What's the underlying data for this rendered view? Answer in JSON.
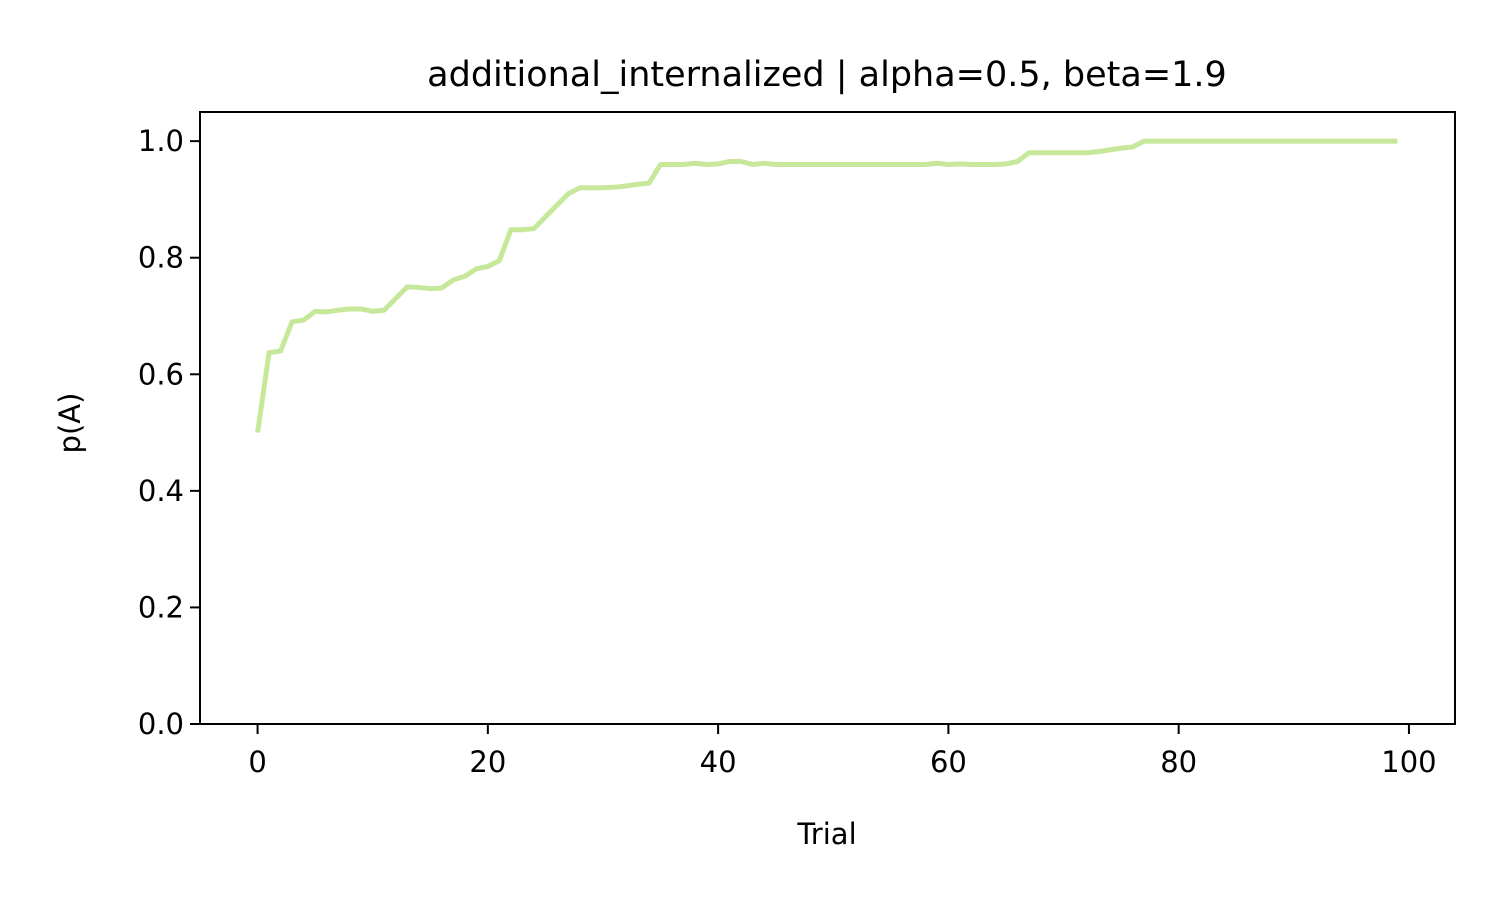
{
  "chart_data": {
    "type": "line",
    "title": "additional_internalized | alpha=0.5, beta=1.9",
    "xlabel": "Trial",
    "ylabel": "p(A)",
    "xlim": [
      -5,
      104
    ],
    "ylim": [
      0.0,
      1.05
    ],
    "x_ticks": [
      0,
      20,
      40,
      60,
      80,
      100
    ],
    "x_tick_labels": [
      "0",
      "20",
      "40",
      "60",
      "80",
      "100"
    ],
    "y_ticks": [
      0.0,
      0.2,
      0.4,
      0.6,
      0.8,
      1.0
    ],
    "y_tick_labels": [
      "0.0",
      "0.2",
      "0.4",
      "0.6",
      "0.8",
      "1.0"
    ],
    "grid": false,
    "series": [
      {
        "color": "#c7e89b",
        "x": [
          0,
          1,
          2,
          3,
          4,
          5,
          6,
          7,
          8,
          9,
          10,
          11,
          12,
          13,
          14,
          15,
          16,
          17,
          18,
          19,
          20,
          21,
          22,
          23,
          24,
          25,
          26,
          27,
          28,
          29,
          30,
          31,
          32,
          33,
          34,
          35,
          36,
          37,
          38,
          39,
          40,
          41,
          42,
          43,
          44,
          45,
          46,
          47,
          48,
          49,
          50,
          51,
          52,
          53,
          54,
          55,
          56,
          57,
          58,
          59,
          60,
          61,
          62,
          63,
          64,
          65,
          66,
          67,
          68,
          69,
          70,
          71,
          72,
          73,
          74,
          75,
          76,
          77,
          78,
          79,
          80,
          81,
          82,
          83,
          84,
          85,
          86,
          87,
          88,
          89,
          90,
          91,
          92,
          93,
          94,
          95,
          96,
          97,
          98,
          99
        ],
        "values": [
          0.5,
          0.637,
          0.64,
          0.69,
          0.693,
          0.708,
          0.707,
          0.71,
          0.712,
          0.712,
          0.708,
          0.71,
          0.73,
          0.75,
          0.749,
          0.747,
          0.748,
          0.762,
          0.768,
          0.781,
          0.785,
          0.795,
          0.848,
          0.848,
          0.85,
          0.87,
          0.89,
          0.91,
          0.92,
          0.92,
          0.92,
          0.921,
          0.923,
          0.926,
          0.928,
          0.96,
          0.96,
          0.96,
          0.962,
          0.96,
          0.961,
          0.965,
          0.965,
          0.96,
          0.962,
          0.96,
          0.96,
          0.96,
          0.96,
          0.96,
          0.96,
          0.96,
          0.96,
          0.96,
          0.96,
          0.96,
          0.96,
          0.96,
          0.96,
          0.962,
          0.96,
          0.961,
          0.96,
          0.96,
          0.96,
          0.961,
          0.965,
          0.98,
          0.98,
          0.98,
          0.98,
          0.98,
          0.98,
          0.982,
          0.985,
          0.988,
          0.99,
          1.0,
          1.0,
          1.0,
          1.0,
          1.0,
          1.0,
          1.0,
          1.0,
          1.0,
          1.0,
          1.0,
          1.0,
          1.0,
          1.0,
          1.0,
          1.0,
          1.0,
          1.0,
          1.0,
          1.0,
          1.0,
          1.0,
          1.0
        ]
      }
    ]
  }
}
